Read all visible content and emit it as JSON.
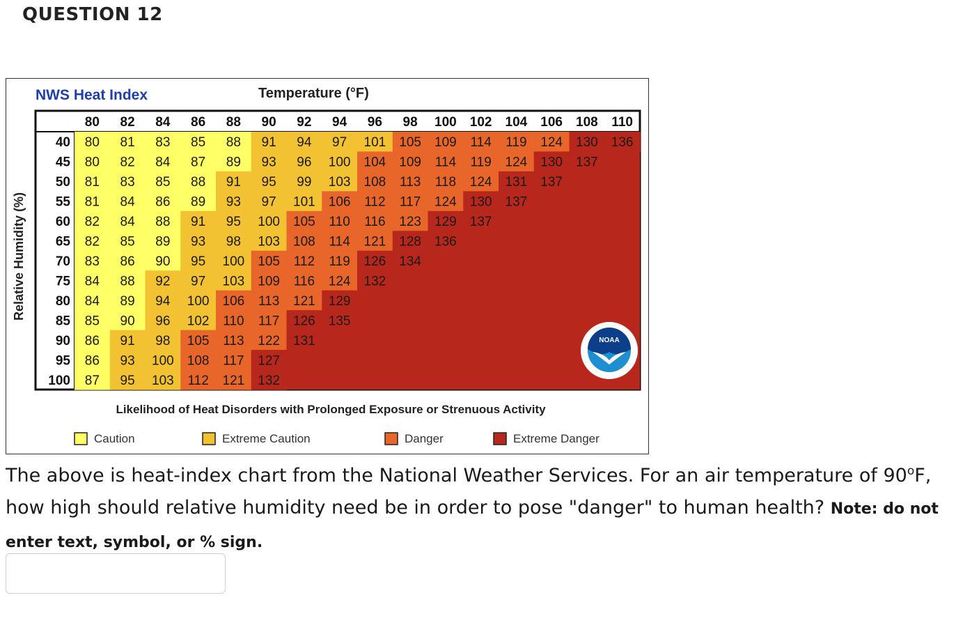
{
  "question_title": "QUESTION 12",
  "chart_data": {
    "type": "heatmap",
    "title": "NWS Heat Index",
    "xlabel": "Temperature (°F)",
    "ylabel": "Relative Humidity (%)",
    "subtitle": "Likelihood of Heat Disorders with Prolonged Exposure or Strenuous Activity",
    "x": [
      80,
      82,
      84,
      86,
      88,
      90,
      92,
      94,
      96,
      98,
      100,
      102,
      104,
      106,
      108,
      110
    ],
    "y": [
      40,
      45,
      50,
      55,
      60,
      65,
      70,
      75,
      80,
      85,
      90,
      95,
      100
    ],
    "values": [
      [
        80,
        81,
        83,
        85,
        88,
        91,
        94,
        97,
        101,
        105,
        109,
        114,
        119,
        124,
        130,
        136
      ],
      [
        80,
        82,
        84,
        87,
        89,
        93,
        96,
        100,
        104,
        109,
        114,
        119,
        124,
        130,
        137
      ],
      [
        81,
        83,
        85,
        88,
        91,
        95,
        99,
        103,
        108,
        113,
        118,
        124,
        131,
        137
      ],
      [
        81,
        84,
        86,
        89,
        93,
        97,
        101,
        106,
        112,
        117,
        124,
        130,
        137
      ],
      [
        82,
        84,
        88,
        91,
        95,
        100,
        105,
        110,
        116,
        123,
        129,
        137
      ],
      [
        82,
        85,
        89,
        93,
        98,
        103,
        108,
        114,
        121,
        128,
        136
      ],
      [
        83,
        86,
        90,
        95,
        100,
        105,
        112,
        119,
        126,
        134
      ],
      [
        84,
        88,
        92,
        97,
        103,
        109,
        116,
        124,
        132
      ],
      [
        84,
        89,
        94,
        100,
        106,
        113,
        121,
        129
      ],
      [
        85,
        90,
        96,
        102,
        110,
        117,
        126,
        135
      ],
      [
        86,
        91,
        98,
        105,
        113,
        122,
        131
      ],
      [
        86,
        93,
        100,
        108,
        117,
        127
      ],
      [
        87,
        95,
        103,
        112,
        121,
        132
      ]
    ],
    "categories": [
      {
        "name": "Caution",
        "color": "#ffff66",
        "min": 80,
        "max": 90
      },
      {
        "name": "Extreme Caution",
        "color": "#f2c233",
        "min": 91,
        "max": 103
      },
      {
        "name": "Danger",
        "color": "#e8662a",
        "min": 104,
        "max": 124
      },
      {
        "name": "Extreme Danger",
        "color": "#b8271b",
        "min": 125,
        "max": 200
      }
    ],
    "legend": [
      "Caution",
      "Extreme Caution",
      "Danger",
      "Extreme Danger"
    ],
    "logo_text": "NOAA"
  },
  "question": {
    "text_part1": "The above is heat-index chart from the National Weather Services. For an air temperature of 90",
    "superscript": "o",
    "text_part2": "F, how high should relative humidity need be in order to pose \"danger\" to human health?",
    "note": "Note: do not enter text, symbol, or % sign."
  },
  "answer": {
    "value": "",
    "placeholder": ""
  }
}
